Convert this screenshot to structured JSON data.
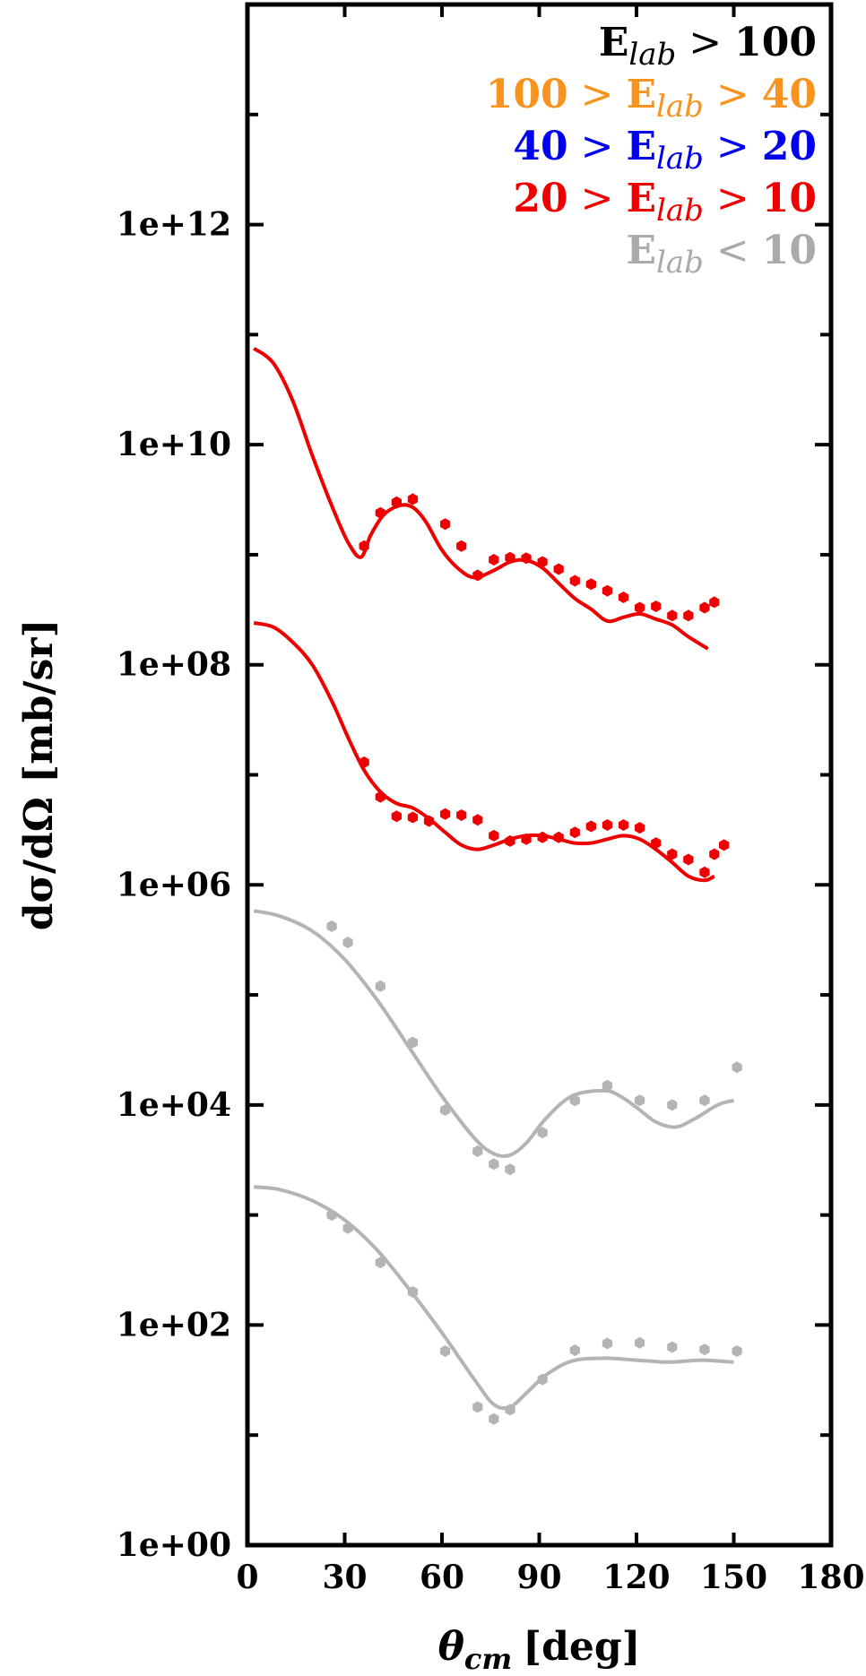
{
  "chart_data": {
    "type": "scatter",
    "xlabel": {
      "main": "θ",
      "sub": "cm",
      "unit": "[deg]"
    },
    "ylabel": "dσ/dΩ [mb/sr]",
    "xlim": [
      0,
      180
    ],
    "ylim": [
      1,
      100000000000000
    ],
    "yscale": "log",
    "x_ticks": [
      0,
      30,
      60,
      90,
      120,
      150,
      180
    ],
    "x_tick_labels": [
      "0",
      "30",
      "60",
      "90",
      "120",
      "150",
      "180"
    ],
    "y_ticks": [
      1,
      100,
      10000,
      1000000,
      100000000,
      10000000000,
      1000000000000
    ],
    "y_tick_labels": [
      "1e+00",
      "1e+02",
      "1e+04",
      "1e+06",
      "1e+08",
      "1e+10",
      "1e+12"
    ],
    "legend": {
      "position": "top-right",
      "entries": [
        {
          "parts": [
            "E",
            "lab",
            " > ",
            "100"
          ],
          "color": "#000000"
        },
        {
          "parts": [
            "100",
            " > ",
            "E",
            "lab",
            " > ",
            "40"
          ],
          "color": "#f7931e"
        },
        {
          "parts": [
            "40",
            " > ",
            "E",
            "lab",
            " > ",
            "20"
          ],
          "color": "#0000ee"
        },
        {
          "parts": [
            "20",
            " > ",
            "E",
            "lab",
            " > ",
            "10"
          ],
          "color": "#ee0000"
        },
        {
          "parts": [
            "E",
            "lab",
            " < ",
            "10"
          ],
          "color": "#aaaaaa"
        }
      ]
    },
    "series": [
      {
        "color": "#ee0000",
        "points": [
          [
            36,
            1200000000.0
          ],
          [
            41,
            2400000000.0
          ],
          [
            46,
            3000000000.0
          ],
          [
            51,
            3200000000.0
          ],
          [
            61,
            1900000000.0
          ],
          [
            66,
            1200000000.0
          ],
          [
            71,
            650000000.0
          ],
          [
            76,
            900000000.0
          ],
          [
            81,
            940000000.0
          ],
          [
            86,
            930000000.0
          ],
          [
            91,
            860000000.0
          ],
          [
            96,
            740000000.0
          ],
          [
            101,
            580000000.0
          ],
          [
            106,
            540000000.0
          ],
          [
            111,
            470000000.0
          ],
          [
            116,
            410000000.0
          ],
          [
            121,
            330000000.0
          ],
          [
            126,
            340000000.0
          ],
          [
            131,
            280000000.0
          ],
          [
            136,
            280000000.0
          ],
          [
            141,
            330000000.0
          ],
          [
            144,
            370000000.0
          ]
        ],
        "curve": [
          [
            2,
            75000000000.0
          ],
          [
            8,
            55000000000.0
          ],
          [
            14,
            25000000000.0
          ],
          [
            20,
            8000000000.0
          ],
          [
            26,
            2800000000.0
          ],
          [
            31,
            1300000000.0
          ],
          [
            35,
            950000000.0
          ],
          [
            38,
            1500000000.0
          ],
          [
            42,
            2300000000.0
          ],
          [
            47,
            2800000000.0
          ],
          [
            51,
            2700000000.0
          ],
          [
            55,
            2000000000.0
          ],
          [
            60,
            1100000000.0
          ],
          [
            65,
            750000000.0
          ],
          [
            70,
            620000000.0
          ],
          [
            76,
            720000000.0
          ],
          [
            81,
            860000000.0
          ],
          [
            86,
            890000000.0
          ],
          [
            91,
            760000000.0
          ],
          [
            96,
            550000000.0
          ],
          [
            101,
            400000000.0
          ],
          [
            106,
            320000000.0
          ],
          [
            111,
            250000000.0
          ],
          [
            116,
            270000000.0
          ],
          [
            121,
            290000000.0
          ],
          [
            126,
            260000000.0
          ],
          [
            131,
            230000000.0
          ],
          [
            136,
            180000000.0
          ],
          [
            142,
            140000000.0
          ]
        ]
      },
      {
        "color": "#ee0000",
        "points": [
          [
            36,
            13000000.0
          ],
          [
            41,
            6300000.0
          ],
          [
            46,
            4200000.0
          ],
          [
            51,
            4100000.0
          ],
          [
            56,
            3800000.0
          ],
          [
            61,
            4400000.0
          ],
          [
            66,
            4300000.0
          ],
          [
            71,
            3900000.0
          ],
          [
            76,
            2800000.0
          ],
          [
            81,
            2500000.0
          ],
          [
            86,
            2600000.0
          ],
          [
            91,
            2700000.0
          ],
          [
            96,
            2700000.0
          ],
          [
            101,
            3000000.0
          ],
          [
            106,
            3400000.0
          ],
          [
            111,
            3500000.0
          ],
          [
            116,
            3500000.0
          ],
          [
            121,
            3300000.0
          ],
          [
            126,
            2400000.0
          ],
          [
            131,
            1900000.0
          ],
          [
            136,
            1700000.0
          ],
          [
            141,
            1300000.0
          ],
          [
            144,
            1900000.0
          ],
          [
            147,
            2300000.0
          ]
        ],
        "curve": [
          [
            2,
            240000000.0
          ],
          [
            8,
            220000000.0
          ],
          [
            14,
            160000000.0
          ],
          [
            20,
            100000000.0
          ],
          [
            26,
            47000000.0
          ],
          [
            31,
            22000000.0
          ],
          [
            36,
            11000000.0
          ],
          [
            41,
            7000000.0
          ],
          [
            46,
            5500000.0
          ],
          [
            51,
            5000000.0
          ],
          [
            56,
            4000000.0
          ],
          [
            61,
            3000000.0
          ],
          [
            66,
            2300000.0
          ],
          [
            71,
            2100000.0
          ],
          [
            76,
            2300000.0
          ],
          [
            81,
            2600000.0
          ],
          [
            86,
            2800000.0
          ],
          [
            91,
            2800000.0
          ],
          [
            96,
            2600000.0
          ],
          [
            101,
            2400000.0
          ],
          [
            106,
            2400000.0
          ],
          [
            111,
            2600000.0
          ],
          [
            116,
            2800000.0
          ],
          [
            121,
            2600000.0
          ],
          [
            126,
            2100000.0
          ],
          [
            131,
            1600000.0
          ],
          [
            136,
            1200000.0
          ],
          [
            141,
            1100000.0
          ],
          [
            144,
            1200000.0
          ]
        ]
      },
      {
        "color": "#b4b4b4",
        "points": [
          [
            26,
            420000.0
          ],
          [
            31,
            300000.0
          ],
          [
            41,
            120000.0
          ],
          [
            51,
            37000.0
          ],
          [
            61,
            9000.0
          ],
          [
            71,
            3800.0
          ],
          [
            76,
            2900.0
          ],
          [
            81,
            2600.0
          ],
          [
            91,
            5600.0
          ],
          [
            101,
            11000.0
          ],
          [
            111,
            15000.0
          ],
          [
            121,
            11000.0
          ],
          [
            131,
            10000.0
          ],
          [
            141,
            11000.0
          ],
          [
            151,
            22000.0
          ]
        ],
        "curve": [
          [
            2,
            580000.0
          ],
          [
            10,
            520000.0
          ],
          [
            20,
            380000.0
          ],
          [
            30,
            210000.0
          ],
          [
            40,
            90000.0
          ],
          [
            50,
            33000.0
          ],
          [
            60,
            12000.0
          ],
          [
            70,
            5000.0
          ],
          [
            76,
            3600.0
          ],
          [
            81,
            3500.0
          ],
          [
            86,
            4500.0
          ],
          [
            92,
            7500.0
          ],
          [
            100,
            12000.0
          ],
          [
            110,
            13500.0
          ],
          [
            115,
            12000.0
          ],
          [
            120,
            9500.0
          ],
          [
            126,
            7000.0
          ],
          [
            132,
            6300.0
          ],
          [
            138,
            7500.0
          ],
          [
            145,
            10000.0
          ],
          [
            150,
            11000.0
          ]
        ]
      },
      {
        "color": "#b4b4b4",
        "points": [
          [
            26,
            1000.0
          ],
          [
            31,
            760.0
          ],
          [
            41,
            370.0
          ],
          [
            51,
            200.0
          ],
          [
            61,
            58.0
          ],
          [
            71,
            18.0
          ],
          [
            76,
            14.0
          ],
          [
            81,
            17.0
          ],
          [
            91,
            32.0
          ],
          [
            101,
            59.0
          ],
          [
            111,
            68.0
          ],
          [
            121,
            69.0
          ],
          [
            131,
            63.0
          ],
          [
            141,
            60.0
          ],
          [
            151,
            58.0
          ]
        ],
        "curve": [
          [
            2,
            1800.0
          ],
          [
            10,
            1700.0
          ],
          [
            20,
            1350.0
          ],
          [
            30,
            900.0
          ],
          [
            40,
            480.0
          ],
          [
            50,
            210.0
          ],
          [
            60,
            85.0
          ],
          [
            70,
            32.0
          ],
          [
            76,
            19.0
          ],
          [
            81,
            18.0
          ],
          [
            86,
            24.0
          ],
          [
            92,
            35.0
          ],
          [
            100,
            47.0
          ],
          [
            110,
            50.0
          ],
          [
            120,
            48.0
          ],
          [
            130,
            46.0
          ],
          [
            140,
            48.0
          ],
          [
            150,
            46.0
          ]
        ]
      }
    ]
  }
}
